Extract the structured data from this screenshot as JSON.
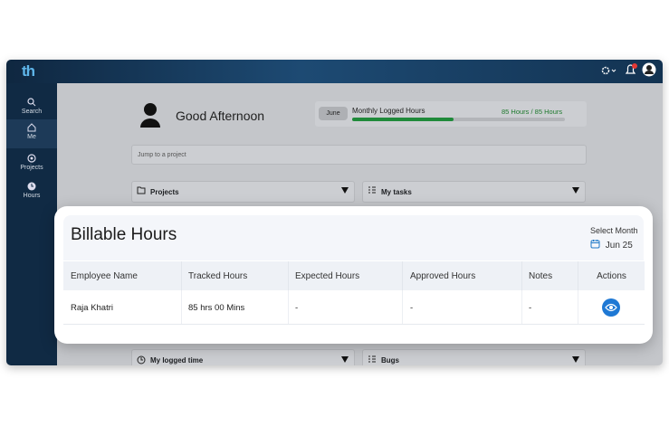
{
  "app": {
    "logo": "th",
    "nav": [
      "Search",
      "Me",
      "Projects",
      "Hours"
    ]
  },
  "greeting": "Good Afternoon",
  "logged_hours": {
    "month": "June",
    "label": "Monthly Logged Hours",
    "value": "85 Hours / 85 Hours"
  },
  "search_placeholder": "Jump to a project",
  "panels": [
    "Projects",
    "My tasks",
    "My logged time",
    "Bugs"
  ],
  "modal": {
    "title": "Billable Hours",
    "select_label": "Select Month",
    "month": "Jun 25",
    "table": {
      "columns": [
        "Employee Name",
        "Tracked Hours",
        "Expected Hours",
        "Approved Hours",
        "Notes",
        "Actions"
      ],
      "rows": [
        [
          "Raja Khatri",
          "85 hrs 00 Mins",
          "-",
          "-",
          "-"
        ]
      ]
    }
  }
}
